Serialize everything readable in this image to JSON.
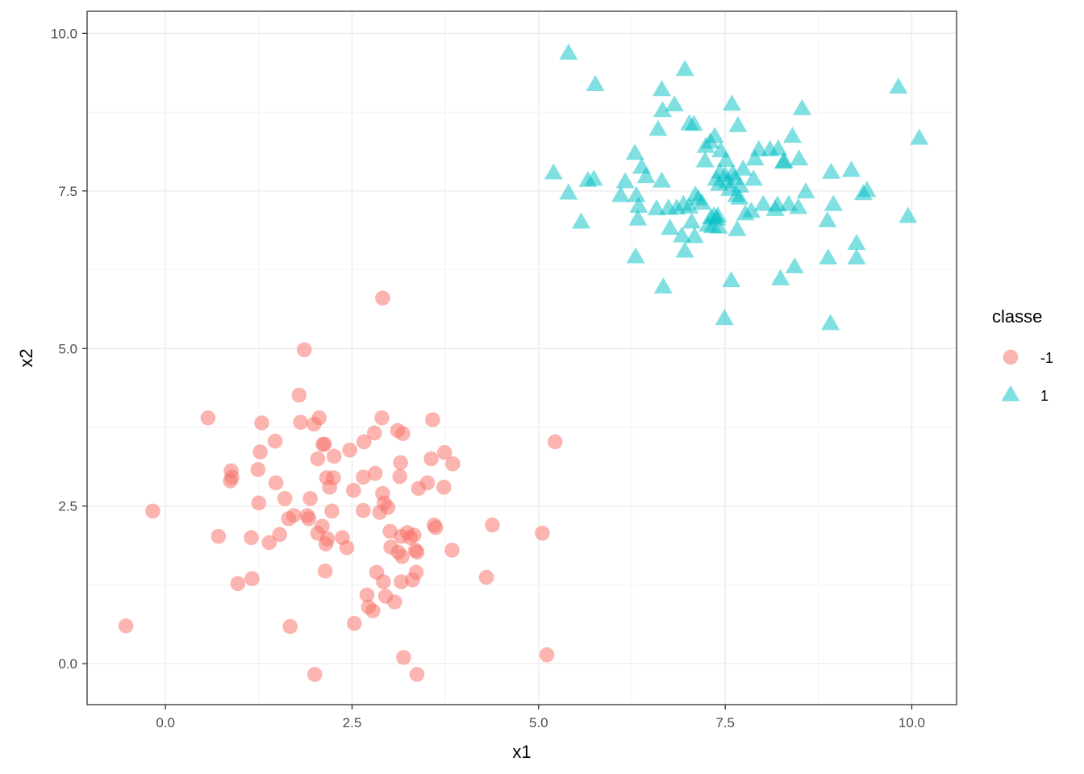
{
  "chart_data": {
    "type": "scatter",
    "title": "",
    "xlabel": "x1",
    "ylabel": "x2",
    "xlim": [
      -1.05,
      10.6
    ],
    "ylim": [
      -0.65,
      10.35
    ],
    "x_ticks": [
      0.0,
      2.5,
      5.0,
      7.5,
      10.0
    ],
    "y_ticks": [
      0.0,
      2.5,
      5.0,
      7.5,
      10.0
    ],
    "x_tick_labels": [
      "0.0",
      "2.5",
      "5.0",
      "7.5",
      "10.0"
    ],
    "y_tick_labels": [
      "0.0",
      "2.5",
      "5.0",
      "7.5",
      "10.0"
    ],
    "grid": true,
    "legend": {
      "title": "classe",
      "position": "right"
    },
    "series": [
      {
        "name": "-1",
        "marker": "circle",
        "color": "#F8766D",
        "points": [
          [
            -0.53,
            0.6
          ],
          [
            -0.17,
            2.42
          ],
          [
            0.57,
            3.9
          ],
          [
            0.71,
            2.02
          ],
          [
            0.87,
            2.9
          ],
          [
            0.88,
            3.06
          ],
          [
            0.89,
            2.96
          ],
          [
            0.97,
            1.27
          ],
          [
            1.15,
            2.0
          ],
          [
            1.16,
            1.35
          ],
          [
            1.24,
            3.08
          ],
          [
            1.25,
            2.55
          ],
          [
            1.27,
            3.36
          ],
          [
            1.29,
            3.82
          ],
          [
            1.39,
            1.92
          ],
          [
            1.47,
            3.53
          ],
          [
            1.48,
            2.87
          ],
          [
            1.53,
            2.05
          ],
          [
            1.6,
            2.62
          ],
          [
            1.65,
            2.3
          ],
          [
            1.67,
            0.59
          ],
          [
            1.72,
            2.35
          ],
          [
            1.79,
            4.26
          ],
          [
            1.81,
            3.83
          ],
          [
            1.86,
            4.98
          ],
          [
            1.9,
            2.35
          ],
          [
            1.92,
            2.3
          ],
          [
            1.94,
            2.62
          ],
          [
            1.99,
            3.8
          ],
          [
            2.0,
            -0.17
          ],
          [
            2.04,
            3.25
          ],
          [
            2.04,
            2.07
          ],
          [
            2.06,
            3.9
          ],
          [
            2.1,
            2.18
          ],
          [
            2.11,
            3.48
          ],
          [
            2.13,
            3.48
          ],
          [
            2.14,
            1.47
          ],
          [
            2.15,
            1.9
          ],
          [
            2.16,
            2.95
          ],
          [
            2.17,
            1.98
          ],
          [
            2.2,
            2.8
          ],
          [
            2.23,
            2.42
          ],
          [
            2.25,
            2.95
          ],
          [
            2.26,
            3.29
          ],
          [
            2.37,
            2.0
          ],
          [
            2.43,
            1.84
          ],
          [
            2.47,
            3.39
          ],
          [
            2.52,
            2.75
          ],
          [
            2.53,
            0.64
          ],
          [
            2.65,
            2.43
          ],
          [
            2.65,
            2.96
          ],
          [
            2.66,
            3.52
          ],
          [
            2.7,
            1.09
          ],
          [
            2.72,
            0.9
          ],
          [
            2.78,
            0.84
          ],
          [
            2.8,
            3.66
          ],
          [
            2.81,
            3.02
          ],
          [
            2.83,
            1.45
          ],
          [
            2.87,
            2.4
          ],
          [
            2.9,
            3.9
          ],
          [
            2.91,
            5.8
          ],
          [
            2.91,
            2.7
          ],
          [
            2.92,
            1.3
          ],
          [
            2.93,
            2.55
          ],
          [
            2.95,
            1.07
          ],
          [
            2.98,
            2.48
          ],
          [
            3.01,
            2.1
          ],
          [
            3.02,
            1.85
          ],
          [
            3.07,
            0.98
          ],
          [
            3.11,
            3.7
          ],
          [
            3.12,
            1.77
          ],
          [
            3.14,
            2.97
          ],
          [
            3.15,
            3.19
          ],
          [
            3.16,
            2.02
          ],
          [
            3.16,
            1.3
          ],
          [
            3.17,
            1.7
          ],
          [
            3.18,
            3.65
          ],
          [
            3.19,
            0.1
          ],
          [
            3.24,
            2.08
          ],
          [
            3.28,
            2.0
          ],
          [
            3.31,
            1.33
          ],
          [
            3.33,
            2.04
          ],
          [
            3.35,
            1.8
          ],
          [
            3.36,
            1.45
          ],
          [
            3.37,
            1.77
          ],
          [
            3.37,
            -0.17
          ],
          [
            3.39,
            2.78
          ],
          [
            3.51,
            2.87
          ],
          [
            3.56,
            3.25
          ],
          [
            3.58,
            3.87
          ],
          [
            3.6,
            2.2
          ],
          [
            3.62,
            2.16
          ],
          [
            3.73,
            2.8
          ],
          [
            3.74,
            3.35
          ],
          [
            3.84,
            1.8
          ],
          [
            3.85,
            3.17
          ],
          [
            4.3,
            1.37
          ],
          [
            4.38,
            2.2
          ],
          [
            5.05,
            2.07
          ],
          [
            5.11,
            0.14
          ],
          [
            5.22,
            3.52
          ]
        ]
      },
      {
        "name": "1",
        "marker": "triangle",
        "color": "#00BFC4",
        "points": [
          [
            5.2,
            7.78
          ],
          [
            5.4,
            7.46
          ],
          [
            5.4,
            9.68
          ],
          [
            5.57,
            7.0
          ],
          [
            5.66,
            7.66
          ],
          [
            5.74,
            7.68
          ],
          [
            5.76,
            9.18
          ],
          [
            6.1,
            7.42
          ],
          [
            6.16,
            7.64
          ],
          [
            6.29,
            8.09
          ],
          [
            6.3,
            6.45
          ],
          [
            6.31,
            7.42
          ],
          [
            6.33,
            7.05
          ],
          [
            6.34,
            7.25
          ],
          [
            6.38,
            7.87
          ],
          [
            6.44,
            7.72
          ],
          [
            6.58,
            7.21
          ],
          [
            6.6,
            8.47
          ],
          [
            6.65,
            7.65
          ],
          [
            6.65,
            9.1
          ],
          [
            6.66,
            8.77
          ],
          [
            6.67,
            5.97
          ],
          [
            6.74,
            7.22
          ],
          [
            6.76,
            6.9
          ],
          [
            6.82,
            8.86
          ],
          [
            6.85,
            7.22
          ],
          [
            6.92,
            6.78
          ],
          [
            6.94,
            7.28
          ],
          [
            6.96,
            6.54
          ],
          [
            6.96,
            9.42
          ],
          [
            7.02,
            8.56
          ],
          [
            7.02,
            7.24
          ],
          [
            7.05,
            7.0
          ],
          [
            7.08,
            8.55
          ],
          [
            7.09,
            6.77
          ],
          [
            7.1,
            7.43
          ],
          [
            7.14,
            7.37
          ],
          [
            7.19,
            7.3
          ],
          [
            7.23,
            7.97
          ],
          [
            7.24,
            8.2
          ],
          [
            7.27,
            6.95
          ],
          [
            7.3,
            8.27
          ],
          [
            7.31,
            7.07
          ],
          [
            7.33,
            6.93
          ],
          [
            7.35,
            7.1
          ],
          [
            7.36,
            8.36
          ],
          [
            7.38,
            7.68
          ],
          [
            7.39,
            7.05
          ],
          [
            7.4,
            7.1
          ],
          [
            7.41,
            6.92
          ],
          [
            7.42,
            7.6
          ],
          [
            7.43,
            7.79
          ],
          [
            7.44,
            8.13
          ],
          [
            7.49,
            5.47
          ],
          [
            7.5,
            7.74
          ],
          [
            7.51,
            7.98
          ],
          [
            7.53,
            7.64
          ],
          [
            7.56,
            7.52
          ],
          [
            7.58,
            6.07
          ],
          [
            7.59,
            8.87
          ],
          [
            7.6,
            7.77
          ],
          [
            7.63,
            7.69
          ],
          [
            7.65,
            7.42
          ],
          [
            7.66,
            6.88
          ],
          [
            7.67,
            8.53
          ],
          [
            7.69,
            7.38
          ],
          [
            7.7,
            7.57
          ],
          [
            7.74,
            7.84
          ],
          [
            7.77,
            7.13
          ],
          [
            7.85,
            7.17
          ],
          [
            7.88,
            7.68
          ],
          [
            7.9,
            8.0
          ],
          [
            7.95,
            8.15
          ],
          [
            8.01,
            7.28
          ],
          [
            8.1,
            8.15
          ],
          [
            8.17,
            7.2
          ],
          [
            8.2,
            7.27
          ],
          [
            8.21,
            8.16
          ],
          [
            8.24,
            6.1
          ],
          [
            8.28,
            7.95
          ],
          [
            8.29,
            7.96
          ],
          [
            8.35,
            7.28
          ],
          [
            8.4,
            8.36
          ],
          [
            8.43,
            6.29
          ],
          [
            8.48,
            7.23
          ],
          [
            8.49,
            8.0
          ],
          [
            8.53,
            8.8
          ],
          [
            8.58,
            7.48
          ],
          [
            8.87,
            7.02
          ],
          [
            8.88,
            6.43
          ],
          [
            8.91,
            5.39
          ],
          [
            8.92,
            7.79
          ],
          [
            8.95,
            7.28
          ],
          [
            9.19,
            7.82
          ],
          [
            9.26,
            6.66
          ],
          [
            9.26,
            6.43
          ],
          [
            9.35,
            7.45
          ],
          [
            9.4,
            7.5
          ],
          [
            9.82,
            9.14
          ],
          [
            9.95,
            7.09
          ],
          [
            10.1,
            8.33
          ]
        ]
      }
    ]
  }
}
